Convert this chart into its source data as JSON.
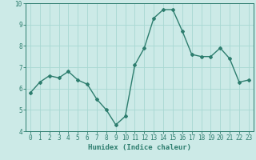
{
  "xlabel": "Humidex (Indice chaleur)",
  "x": [
    0,
    1,
    2,
    3,
    4,
    5,
    6,
    7,
    8,
    9,
    10,
    11,
    12,
    13,
    14,
    15,
    16,
    17,
    18,
    19,
    20,
    21,
    22,
    23
  ],
  "y": [
    5.8,
    6.3,
    6.6,
    6.5,
    6.8,
    6.4,
    6.2,
    5.5,
    5.0,
    4.3,
    4.7,
    7.1,
    7.9,
    9.3,
    9.7,
    9.7,
    8.7,
    7.6,
    7.5,
    7.5,
    7.9,
    7.4,
    6.3,
    6.4
  ],
  "line_color": "#2d7d6e",
  "marker": "D",
  "marker_size": 2.0,
  "line_width": 1.0,
  "bg_color": "#cceae7",
  "grid_color": "#a8d8d2",
  "ylim": [
    4,
    10
  ],
  "xlim": [
    -0.5,
    23.5
  ],
  "yticks": [
    4,
    5,
    6,
    7,
    8,
    9,
    10
  ],
  "xticks": [
    0,
    1,
    2,
    3,
    4,
    5,
    6,
    7,
    8,
    9,
    10,
    11,
    12,
    13,
    14,
    15,
    16,
    17,
    18,
    19,
    20,
    21,
    22,
    23
  ],
  "tick_color": "#2d7d6e",
  "xlabel_fontsize": 6.5,
  "tick_fontsize": 5.5
}
